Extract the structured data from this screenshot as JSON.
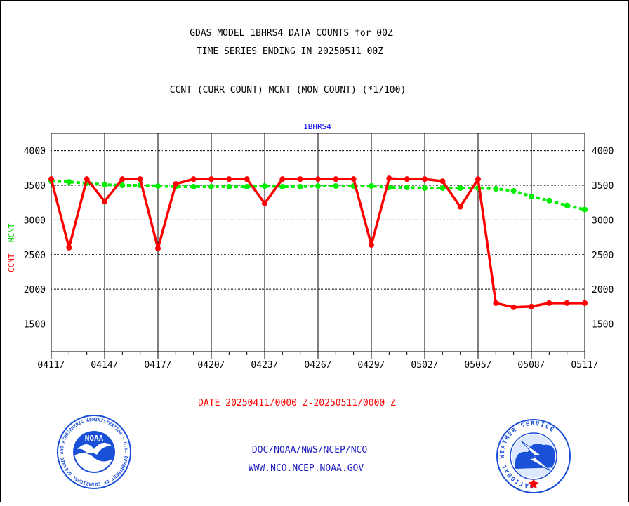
{
  "header": {
    "title_line1": "GDAS MODEL 1BHRS4 DATA COUNTS for 00Z",
    "title_line2": "TIME SERIES ENDING IN 20250511 00Z",
    "subtitle": "CCNT (CURR COUNT) MCNT (MON COUNT) (*1/100)"
  },
  "chart_data": {
    "type": "line",
    "title": "1BHRS4",
    "ylabel_ccnt": "CCNT",
    "ylabel_mcnt": "MCNT",
    "xlabel": "DATE 20250411/0000 Z-20250511/0000 Z",
    "ylim": [
      1100,
      4250
    ],
    "yticks": [
      1500,
      2000,
      2500,
      3000,
      3500,
      4000
    ],
    "ytick_labels": [
      "1500",
      "2000",
      "2500",
      "3000",
      "3500",
      "4000"
    ],
    "xtick_labels": [
      "0411/",
      "0414/",
      "0417/",
      "0420/",
      "0423/",
      "0426/",
      "0429/",
      "0502/",
      "0505/",
      "0508/",
      "0511/"
    ],
    "grid": true,
    "x": [
      "0411",
      "0412",
      "0413",
      "0414",
      "0415",
      "0416",
      "0417",
      "0418",
      "0419",
      "0420",
      "0421",
      "0422",
      "0423",
      "0424",
      "0425",
      "0426",
      "0427",
      "0428",
      "0429",
      "0430",
      "0501",
      "0502",
      "0503",
      "0504",
      "0505",
      "0506",
      "0507",
      "0508",
      "0509",
      "0510",
      "0511"
    ],
    "series": [
      {
        "name": "CCNT",
        "color": "#ff0000",
        "style": "solid",
        "values": [
          3590,
          2600,
          3590,
          3270,
          3590,
          3590,
          2590,
          3520,
          3590,
          3590,
          3590,
          3590,
          3240,
          3590,
          3590,
          3590,
          3590,
          3590,
          2640,
          3600,
          3590,
          3590,
          3560,
          3190,
          3590,
          1800,
          1740,
          1750,
          1800,
          1800,
          1800
        ]
      },
      {
        "name": "MCNT",
        "color": "#00ee00",
        "style": "dashed",
        "values": [
          3560,
          3550,
          3530,
          3510,
          3500,
          3500,
          3490,
          3480,
          3480,
          3480,
          3480,
          3480,
          3490,
          3480,
          3480,
          3490,
          3490,
          3490,
          3490,
          3470,
          3470,
          3460,
          3460,
          3460,
          3460,
          3450,
          3420,
          3340,
          3280,
          3210,
          3150
        ]
      }
    ]
  },
  "footer": {
    "agency_line1": "DOC/NOAA/NWS/NCEP/NCO",
    "agency_line2": "WWW.NCO.NCEP.NOAA.GOV"
  },
  "logos": {
    "noaa_text": "NOAA",
    "noaa_ring_text": "NATIONAL OCEANIC AND ATMOSPHERIC ADMINISTRATION · U.S. DEPARTMENT OF COMMERCE ·",
    "nws_ring_text": "NATIONAL WEATHER SERVICE"
  },
  "colors": {
    "title_blue": "#0000ff",
    "footer_blue": "#2020c0",
    "date_red": "#ff0000",
    "ccnt_red": "#ff0000",
    "mcnt_green": "#00ee00",
    "noaa_blue": "#1a4fd8",
    "nws_blue": "#1a4fd8"
  }
}
